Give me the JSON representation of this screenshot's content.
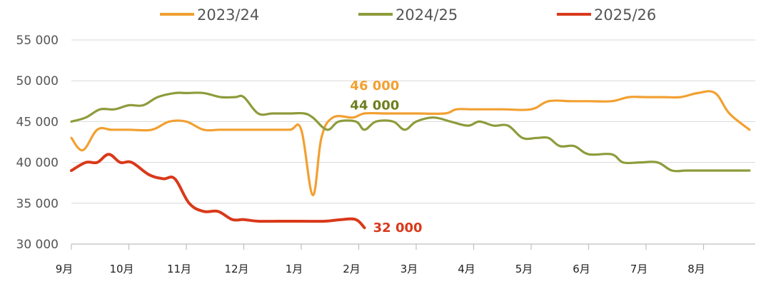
{
  "chart_data": {
    "type": "line",
    "title": "",
    "xlabel": "",
    "ylabel": "",
    "ylim": [
      30000,
      55000
    ],
    "y_ticks": [
      {
        "value": 30000,
        "label": "30 000"
      },
      {
        "value": 35000,
        "label": "35 000"
      },
      {
        "value": 40000,
        "label": "40 000"
      },
      {
        "value": 45000,
        "label": "45 000"
      },
      {
        "value": 50000,
        "label": "50 000"
      },
      {
        "value": 55000,
        "label": "55 000"
      }
    ],
    "grid": "horizontal",
    "legend_position": "top",
    "x_unit": "month index (0 = 9月 start, 12 = end of 8月)",
    "xlim": [
      0,
      11.8
    ],
    "categories": [
      "9月",
      "10月",
      "11月",
      "12月",
      "1月",
      "2月",
      "3月",
      "4月",
      "5月",
      "6月",
      "7月",
      "8月"
    ],
    "series": [
      {
        "name": "2023/24",
        "color": "#F2A031",
        "points": [
          [
            0.0,
            43000
          ],
          [
            0.2,
            41500
          ],
          [
            0.45,
            44000
          ],
          [
            0.7,
            44000
          ],
          [
            1.0,
            44000
          ],
          [
            1.4,
            44000
          ],
          [
            1.7,
            45000
          ],
          [
            2.0,
            45000
          ],
          [
            2.3,
            44000
          ],
          [
            2.6,
            44000
          ],
          [
            3.0,
            44000
          ],
          [
            3.4,
            44000
          ],
          [
            3.8,
            44000
          ],
          [
            4.0,
            44000
          ],
          [
            4.2,
            36000
          ],
          [
            4.35,
            43000
          ],
          [
            4.55,
            45500
          ],
          [
            4.9,
            45500
          ],
          [
            5.1,
            46000
          ],
          [
            5.5,
            46000
          ],
          [
            6.0,
            46000
          ],
          [
            6.5,
            46000
          ],
          [
            6.7,
            46500
          ],
          [
            7.0,
            46500
          ],
          [
            7.5,
            46500
          ],
          [
            8.0,
            46500
          ],
          [
            8.3,
            47500
          ],
          [
            8.7,
            47500
          ],
          [
            9.0,
            47500
          ],
          [
            9.4,
            47500
          ],
          [
            9.7,
            48000
          ],
          [
            10.0,
            48000
          ],
          [
            10.3,
            48000
          ],
          [
            10.6,
            48000
          ],
          [
            10.9,
            48500
          ],
          [
            11.2,
            48500
          ],
          [
            11.45,
            46000
          ],
          [
            11.8,
            44000
          ]
        ]
      },
      {
        "name": "2024/25",
        "color": "#8E9B3B",
        "points": [
          [
            0.0,
            45000
          ],
          [
            0.25,
            45500
          ],
          [
            0.5,
            46500
          ],
          [
            0.75,
            46500
          ],
          [
            1.0,
            47000
          ],
          [
            1.25,
            47000
          ],
          [
            1.5,
            48000
          ],
          [
            1.8,
            48500
          ],
          [
            2.0,
            48500
          ],
          [
            2.3,
            48500
          ],
          [
            2.6,
            48000
          ],
          [
            2.85,
            48000
          ],
          [
            3.0,
            48000
          ],
          [
            3.25,
            46000
          ],
          [
            3.5,
            46000
          ],
          [
            3.8,
            46000
          ],
          [
            4.05,
            46000
          ],
          [
            4.2,
            45500
          ],
          [
            4.45,
            44000
          ],
          [
            4.65,
            45000
          ],
          [
            4.95,
            45000
          ],
          [
            5.1,
            44000
          ],
          [
            5.3,
            45000
          ],
          [
            5.6,
            45000
          ],
          [
            5.8,
            44000
          ],
          [
            6.0,
            45000
          ],
          [
            6.3,
            45500
          ],
          [
            6.6,
            45000
          ],
          [
            6.9,
            44500
          ],
          [
            7.1,
            45000
          ],
          [
            7.35,
            44500
          ],
          [
            7.6,
            44500
          ],
          [
            7.85,
            43000
          ],
          [
            8.1,
            43000
          ],
          [
            8.3,
            43000
          ],
          [
            8.5,
            42000
          ],
          [
            8.75,
            42000
          ],
          [
            9.0,
            41000
          ],
          [
            9.4,
            41000
          ],
          [
            9.6,
            40000
          ],
          [
            9.9,
            40000
          ],
          [
            10.2,
            40000
          ],
          [
            10.45,
            39000
          ],
          [
            10.7,
            39000
          ],
          [
            11.0,
            39000
          ],
          [
            11.4,
            39000
          ],
          [
            11.8,
            39000
          ]
        ]
      },
      {
        "name": "2025/26",
        "color": "#D9391A",
        "points": [
          [
            0.0,
            39000
          ],
          [
            0.25,
            40000
          ],
          [
            0.45,
            40000
          ],
          [
            0.65,
            41000
          ],
          [
            0.85,
            40000
          ],
          [
            1.05,
            40000
          ],
          [
            1.35,
            38500
          ],
          [
            1.6,
            38000
          ],
          [
            1.8,
            38000
          ],
          [
            2.05,
            35000
          ],
          [
            2.3,
            34000
          ],
          [
            2.55,
            34000
          ],
          [
            2.8,
            33000
          ],
          [
            3.0,
            33000
          ],
          [
            3.25,
            32800
          ],
          [
            3.6,
            32800
          ],
          [
            4.0,
            32800
          ],
          [
            4.4,
            32800
          ],
          [
            4.7,
            33000
          ],
          [
            4.95,
            33000
          ],
          [
            5.1,
            32000
          ]
        ]
      }
    ],
    "annotations": [
      {
        "text": "46 000",
        "color": "#F2A031",
        "x": 4.85,
        "y": 49400
      },
      {
        "text": "44 000",
        "color": "#6F7F1F",
        "x": 4.85,
        "y": 47000
      },
      {
        "text": "32 000",
        "color": "#D9391A",
        "x": 5.25,
        "y": 32000
      }
    ]
  }
}
